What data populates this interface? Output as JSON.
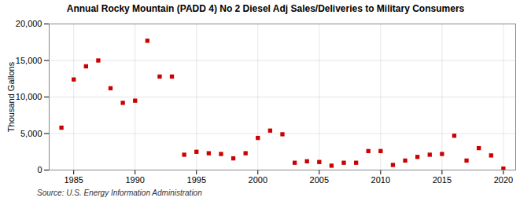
{
  "chart_data": {
    "type": "scatter",
    "title": "Annual Rocky Mountain (PADD 4) No 2 Diesel Adj Sales/Deliveries to Military Consumers",
    "ylabel": "Thousand Gallons",
    "annotations": [
      "Source: U.S. Energy Information Administration"
    ],
    "x": [
      1984,
      1985,
      1986,
      1987,
      1988,
      1989,
      1990,
      1991,
      1992,
      1993,
      1994,
      1995,
      1996,
      1997,
      1998,
      1999,
      2000,
      2001,
      2002,
      2003,
      2004,
      2005,
      2006,
      2007,
      2008,
      2009,
      2010,
      2011,
      2012,
      2013,
      2014,
      2015,
      2016,
      2017,
      2018,
      2019,
      2020
    ],
    "values": [
      5800,
      12400,
      14200,
      15000,
      11200,
      9200,
      9500,
      17700,
      12800,
      12800,
      2100,
      2500,
      2300,
      2200,
      1600,
      2300,
      4400,
      5400,
      4900,
      1000,
      1200,
      1100,
      600,
      1000,
      1000,
      2600,
      2600,
      700,
      1300,
      1800,
      2100,
      2200,
      4700,
      1300,
      3000,
      2000,
      200
    ],
    "color": "#cc0000",
    "marker": "square",
    "xlim": [
      1983,
      2021
    ],
    "xticks": [
      1985,
      1990,
      1995,
      2000,
      2005,
      2010,
      2015,
      2020
    ],
    "ylim": [
      0,
      20000
    ],
    "yticks": [
      0,
      {
        "value": 5000,
        "label": "5,000"
      },
      {
        "value": 10000,
        "label": "10,000"
      },
      {
        "value": 15000,
        "label": "15,000"
      },
      {
        "value": 20000,
        "label": "20,000"
      }
    ],
    "grid": true
  }
}
